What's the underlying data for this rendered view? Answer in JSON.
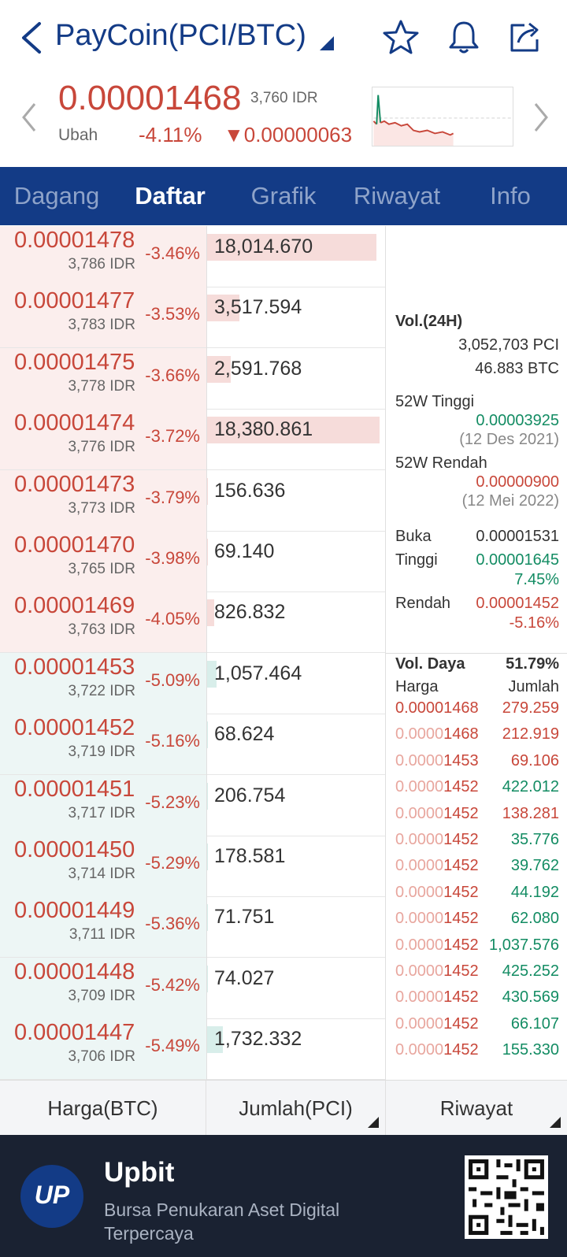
{
  "header": {
    "title": "PayCoin(PCI/BTC)",
    "icons": [
      "back-icon",
      "star-icon",
      "bell-icon",
      "share-icon"
    ]
  },
  "summary": {
    "price": "0.00001468",
    "price_idr": "3,760 IDR",
    "change_label": "Ubah",
    "change_pct": "-4.11%",
    "change_abs": "▼0.00000063"
  },
  "tabs": [
    "Dagang",
    "Daftar",
    "Grafik",
    "Riwayat",
    "Info"
  ],
  "active_tab": "Daftar",
  "asks": [
    {
      "price": "0.00001478",
      "idr": "3,786 IDR",
      "pct": "-3.46%",
      "qty": "18,014.670",
      "fill": 0.98
    },
    {
      "price": "0.00001477",
      "idr": "3,783 IDR",
      "pct": "-3.53%",
      "qty": "3,517.594",
      "fill": 0.19
    },
    {
      "price": "0.00001475",
      "idr": "3,778 IDR",
      "pct": "-3.66%",
      "qty": "2,591.768",
      "fill": 0.14
    },
    {
      "price": "0.00001474",
      "idr": "3,776 IDR",
      "pct": "-3.72%",
      "qty": "18,380.861",
      "fill": 1.0
    },
    {
      "price": "0.00001473",
      "idr": "3,773 IDR",
      "pct": "-3.79%",
      "qty": "156.636",
      "fill": 0.01
    },
    {
      "price": "0.00001470",
      "idr": "3,765 IDR",
      "pct": "-3.98%",
      "qty": "69.140",
      "fill": 0.005
    },
    {
      "price": "0.00001469",
      "idr": "3,763 IDR",
      "pct": "-4.05%",
      "qty": "826.832",
      "fill": 0.045
    }
  ],
  "bids": [
    {
      "price": "0.00001453",
      "idr": "3,722 IDR",
      "pct": "-5.09%",
      "qty": "1,057.464",
      "fill": 0.058
    },
    {
      "price": "0.00001452",
      "idr": "3,719 IDR",
      "pct": "-5.16%",
      "qty": "68.624",
      "fill": 0.004
    },
    {
      "price": "0.00001451",
      "idr": "3,717 IDR",
      "pct": "-5.23%",
      "qty": "206.754",
      "fill": 0.011
    },
    {
      "price": "0.00001450",
      "idr": "3,714 IDR",
      "pct": "-5.29%",
      "qty": "178.581",
      "fill": 0.01
    },
    {
      "price": "0.00001449",
      "idr": "3,711 IDR",
      "pct": "-5.36%",
      "qty": "71.751",
      "fill": 0.004
    },
    {
      "price": "0.00001448",
      "idr": "3,709 IDR",
      "pct": "-5.42%",
      "qty": "74.027",
      "fill": 0.004
    },
    {
      "price": "0.00001447",
      "idr": "3,706 IDR",
      "pct": "-5.49%",
      "qty": "1,732.332",
      "fill": 0.094
    }
  ],
  "side": {
    "vol_label": "Vol.(24H)",
    "vol_pci": "3,052,703 PCI",
    "vol_btc": "46.883 BTC",
    "high52_label": "52W Tinggi",
    "high52_value": "0.00003925",
    "high52_date": "(12 Des 2021)",
    "low52_label": "52W Rendah",
    "low52_value": "0.00000900",
    "low52_date": "(12 Mei 2022)",
    "open_label": "Buka",
    "open_value": "0.00001531",
    "high_label": "Tinggi",
    "high_value": "0.00001645",
    "high_pct": "7.45%",
    "low_label": "Rendah",
    "low_value": "0.00001452",
    "low_pct": "-5.16%",
    "power_label": "Vol. Daya",
    "power_value": "51.79%",
    "col_price": "Harga",
    "col_qty": "Jumlah"
  },
  "trades": [
    {
      "prefix": "",
      "rest": "0.00001468",
      "qty": "279.259",
      "dir": "red"
    },
    {
      "prefix": "0.0000",
      "rest": "1468",
      "qty": "212.919",
      "dir": "red"
    },
    {
      "prefix": "0.0000",
      "rest": "1453",
      "qty": "69.106",
      "dir": "red"
    },
    {
      "prefix": "0.0000",
      "rest": "1452",
      "qty": "422.012",
      "dir": "green"
    },
    {
      "prefix": "0.0000",
      "rest": "1452",
      "qty": "138.281",
      "dir": "red"
    },
    {
      "prefix": "0.0000",
      "rest": "1452",
      "qty": "35.776",
      "dir": "green"
    },
    {
      "prefix": "0.0000",
      "rest": "1452",
      "qty": "39.762",
      "dir": "green"
    },
    {
      "prefix": "0.0000",
      "rest": "1452",
      "qty": "44.192",
      "dir": "green"
    },
    {
      "prefix": "0.0000",
      "rest": "1452",
      "qty": "62.080",
      "dir": "green"
    },
    {
      "prefix": "0.0000",
      "rest": "1452",
      "qty": "1,037.576",
      "dir": "green"
    },
    {
      "prefix": "0.0000",
      "rest": "1452",
      "qty": "425.252",
      "dir": "green"
    },
    {
      "prefix": "0.0000",
      "rest": "1452",
      "qty": "430.569",
      "dir": "green"
    },
    {
      "prefix": "0.0000",
      "rest": "1452",
      "qty": "66.107",
      "dir": "green"
    },
    {
      "prefix": "0.0000",
      "rest": "1452",
      "qty": "155.330",
      "dir": "green"
    }
  ],
  "bottom_tabs": [
    "Harga(BTC)",
    "Jumlah(PCI)",
    "Riwayat"
  ],
  "banner": {
    "logo_text": "UP",
    "brand": "Upbit",
    "tagline": "Bursa Penukaran Aset Digital Terpercaya"
  },
  "colors": {
    "primary": "#133b86",
    "ask": "#c8473a",
    "bid": "#138c63",
    "banner": "#1a2232"
  }
}
